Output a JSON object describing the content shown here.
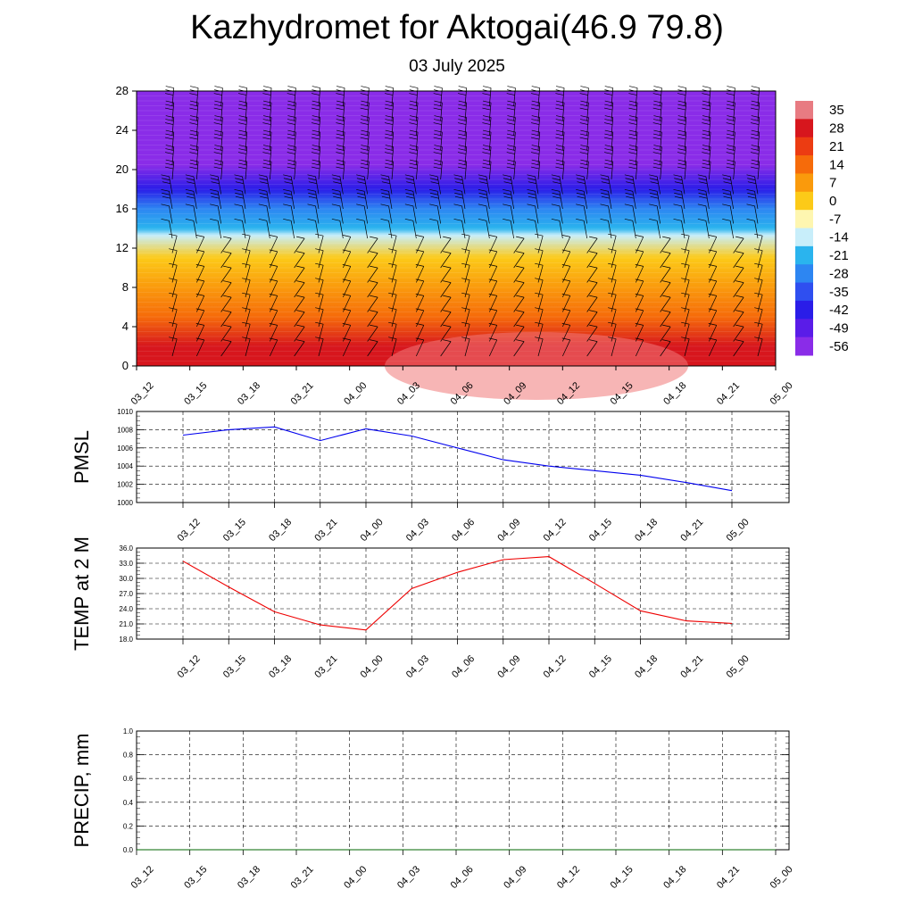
{
  "title": "Kazhydromet for Aktogai(46.9 79.8)",
  "subtitle": "03 July 2025",
  "time_labels": [
    "03_12",
    "03_15",
    "03_18",
    "03_21",
    "04_00",
    "04_03",
    "04_06",
    "04_09",
    "04_12",
    "04_15",
    "04_18",
    "04_21",
    "05_00"
  ],
  "chart_data": [
    {
      "type": "heatmap",
      "title": "",
      "y_ticks": [
        0,
        4,
        8,
        12,
        16,
        20,
        24,
        28
      ],
      "ylim": [
        0,
        28
      ],
      "x": [
        "03_12",
        "03_15",
        "03_18",
        "03_21",
        "04_00",
        "04_03",
        "04_06",
        "04_09",
        "04_12",
        "04_15",
        "04_18",
        "04_21",
        "05_00"
      ],
      "colorbar": {
        "labels": [
          "35",
          "28",
          "21",
          "14",
          "7",
          "0",
          "-7",
          "-14",
          "-21",
          "-28",
          "-35",
          "-42",
          "-49",
          "-56"
        ],
        "colors": [
          "#e87b82",
          "#d7161d",
          "#ec3c12",
          "#f66b0a",
          "#fa9a0c",
          "#fcca18",
          "#fef6b0",
          "#c8eefa",
          "#2ab4ee",
          "#2d86f2",
          "#2f4ff0",
          "#2a1de8",
          "#5a1ce8",
          "#8a2ce8"
        ]
      },
      "temperature_profile": [
        {
          "height": 0,
          "value": 32
        },
        {
          "height": 2,
          "value": 28
        },
        {
          "height": 5,
          "value": 20
        },
        {
          "height": 8,
          "value": 8
        },
        {
          "height": 11,
          "value": 0
        },
        {
          "height": 13.3,
          "value": -8
        },
        {
          "height": 14,
          "value": -16
        },
        {
          "height": 16,
          "value": -28
        },
        {
          "height": 18,
          "value": -40
        },
        {
          "height": 20.5,
          "value": -52
        },
        {
          "height": 24,
          "value": -56
        },
        {
          "height": 28,
          "value": -60
        }
      ],
      "wind_barbs": true
    },
    {
      "type": "line",
      "ylabel": "PMSL",
      "x": [
        "03_12",
        "03_15",
        "03_18",
        "03_21",
        "04_00",
        "04_03",
        "04_06",
        "04_09",
        "04_12",
        "04_15",
        "04_18",
        "04_21",
        "05_00"
      ],
      "y_ticks": [
        "1000",
        "1002",
        "1004",
        "1006",
        "1008",
        "1010"
      ],
      "ylim": [
        1000,
        1010
      ],
      "grid": true,
      "color": "#0000ee",
      "values": [
        1007.4,
        1008.0,
        1008.3,
        1006.8,
        1008.1,
        1007.3,
        1006.0,
        1004.7,
        1004.0,
        1003.5,
        1003.0,
        1002.2,
        1001.3
      ]
    },
    {
      "type": "line",
      "ylabel": "TEMP at 2 M",
      "x": [
        "03_12",
        "03_15",
        "03_18",
        "03_21",
        "04_00",
        "04_03",
        "04_06",
        "04_09",
        "04_12",
        "04_15",
        "04_18",
        "04_21",
        "05_00"
      ],
      "y_ticks": [
        "18.0",
        "21.0",
        "24.0",
        "27.0",
        "30.0",
        "33.0",
        "36.0"
      ],
      "ylim": [
        18,
        36
      ],
      "grid": true,
      "color": "#ee0000",
      "values": [
        33.4,
        28.3,
        23.4,
        20.8,
        19.8,
        28.0,
        31.2,
        33.7,
        34.3,
        29.0,
        23.6,
        21.6,
        21.1
      ]
    },
    {
      "type": "line",
      "ylabel": "PRECIP, mm",
      "x": [
        "03_12",
        "03_15",
        "03_18",
        "03_21",
        "04_00",
        "04_03",
        "04_06",
        "04_09",
        "04_12",
        "04_15",
        "04_18",
        "04_21",
        "05_00"
      ],
      "y_ticks": [
        "0.0",
        "0.2",
        "0.4",
        "0.6",
        "0.8",
        "1.0"
      ],
      "ylim": [
        0,
        1
      ],
      "grid": true,
      "color": "#006400",
      "values": [
        0,
        0,
        0,
        0,
        0,
        0,
        0,
        0,
        0,
        0,
        0,
        0,
        0
      ]
    }
  ]
}
